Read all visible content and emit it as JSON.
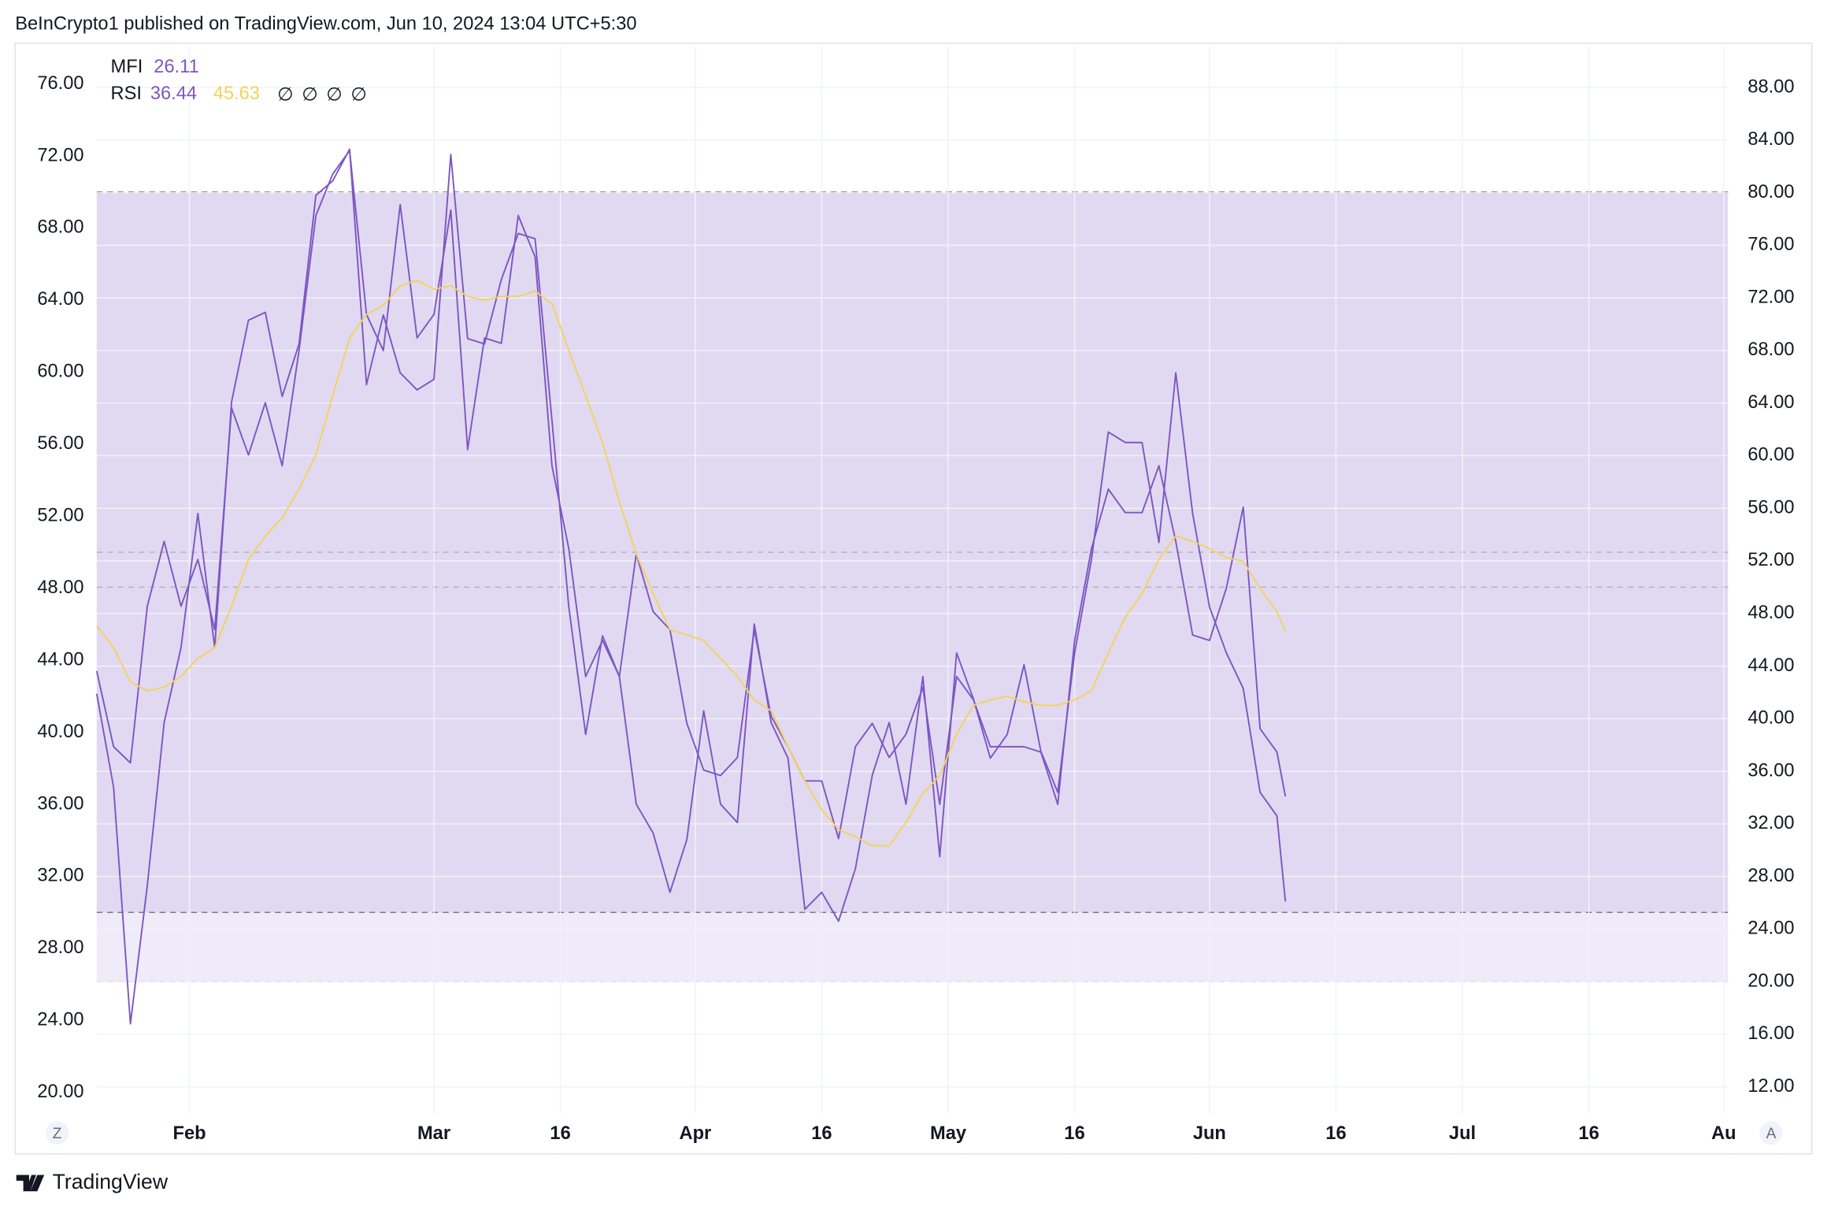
{
  "header": "BeInCrypto1 published on TradingView.com, Jun 10, 2024 13:04 UTC+5:30",
  "footer": "TradingView",
  "buttons": [
    "Z",
    "A"
  ],
  "chart_data": {
    "type": "line",
    "legend_symbols": [
      "∅",
      "∅",
      "∅",
      "∅"
    ],
    "x": [
      21,
      23,
      25,
      27,
      29,
      31,
      33,
      35,
      37,
      39,
      41,
      43,
      45,
      47,
      49,
      51,
      53,
      55,
      57,
      59,
      61,
      63,
      65,
      67,
      69,
      71,
      73,
      75,
      77,
      79,
      81,
      83,
      85,
      87,
      89,
      91,
      93,
      95,
      97,
      99,
      101,
      103,
      105,
      107,
      109,
      111,
      113,
      115,
      117,
      119,
      121,
      123,
      125,
      127,
      129,
      131,
      133,
      135,
      137,
      139,
      141,
      143,
      145,
      147,
      149,
      151,
      153,
      155,
      157,
      159,
      161,
      162
    ],
    "xlim": [
      21,
      214.5
    ],
    "xticks": [
      {
        "value": 32,
        "label": "Feb"
      },
      {
        "value": 61,
        "label": "Mar"
      },
      {
        "value": 76,
        "label": "16"
      },
      {
        "value": 92,
        "label": "Apr"
      },
      {
        "value": 107,
        "label": "16"
      },
      {
        "value": 122,
        "label": "May"
      },
      {
        "value": 137,
        "label": "16"
      },
      {
        "value": 153,
        "label": "Jun"
      },
      {
        "value": 168,
        "label": "16"
      },
      {
        "value": 183,
        "label": "Jul"
      },
      {
        "value": 198,
        "label": "16"
      },
      {
        "value": 214,
        "label": "Au"
      }
    ],
    "ylim": [
      18.85,
      78.07
    ],
    "yticks": [
      {
        "value": 20,
        "label": "20.00"
      },
      {
        "value": 24,
        "label": "24.00"
      },
      {
        "value": 28,
        "label": "28.00"
      },
      {
        "value": 32,
        "label": "32.00"
      },
      {
        "value": 36,
        "label": "36.00"
      },
      {
        "value": 40,
        "label": "40.00"
      },
      {
        "value": 44,
        "label": "44.00"
      },
      {
        "value": 48,
        "label": "48.00"
      },
      {
        "value": 52,
        "label": "52.00"
      },
      {
        "value": 56,
        "label": "56.00"
      },
      {
        "value": 60,
        "label": "60.00"
      },
      {
        "value": 64,
        "label": "64.00"
      },
      {
        "value": 68,
        "label": "68.00"
      },
      {
        "value": 72,
        "label": "72.00"
      },
      {
        "value": 76,
        "label": "76.00"
      }
    ],
    "y2lim": [
      10.0,
      91.1
    ],
    "y2ticks": [
      {
        "value": 12,
        "label": "12.00"
      },
      {
        "value": 16,
        "label": "16.00"
      },
      {
        "value": 20,
        "label": "20.00"
      },
      {
        "value": 24,
        "label": "24.00"
      },
      {
        "value": 28,
        "label": "28.00"
      },
      {
        "value": 32,
        "label": "32.00"
      },
      {
        "value": 36,
        "label": "36.00"
      },
      {
        "value": 40,
        "label": "40.00"
      },
      {
        "value": 44,
        "label": "44.00"
      },
      {
        "value": 48,
        "label": "48.00"
      },
      {
        "value": 52,
        "label": "52.00"
      },
      {
        "value": 56,
        "label": "56.00"
      },
      {
        "value": 60,
        "label": "60.00"
      },
      {
        "value": 64,
        "label": "64.00"
      },
      {
        "value": 68,
        "label": "68.00"
      },
      {
        "value": 72,
        "label": "72.00"
      },
      {
        "value": 76,
        "label": "76.00"
      },
      {
        "value": 80,
        "label": "80.00"
      },
      {
        "value": 84,
        "label": "84.00"
      },
      {
        "value": 88,
        "label": "88.00"
      }
    ],
    "grid": true,
    "bands": [
      {
        "axis": "y",
        "lower": 30,
        "middle": 50,
        "upper": 70,
        "color": "#7e57c2"
      },
      {
        "axis": "y2",
        "lower": 20,
        "middle": 50,
        "upper": 80,
        "color": "#7e57c2"
      }
    ],
    "series": [
      {
        "name": "MFI",
        "axis": "y2",
        "color": "#7e57c2",
        "values": [
          41.9,
          34.8,
          16.8,
          27.3,
          39.7,
          45.4,
          55.6,
          45.4,
          64.1,
          70.3,
          70.9,
          64.5,
          68.5,
          79.8,
          80.9,
          83.3,
          65.4,
          70.7,
          66.3,
          65.0,
          65.8,
          82.9,
          68.9,
          68.5,
          73.4,
          76.9,
          76.5,
          62.7,
          48.5,
          38.8,
          46.3,
          43.2,
          33.5,
          31.3,
          26.8,
          30.8,
          40.6,
          33.5,
          32.1,
          47.2,
          39.7,
          37.0,
          25.5,
          26.8,
          24.6,
          28.6,
          35.7,
          39.7,
          33.5,
          43.2,
          29.5,
          45.0,
          41.5,
          37.0,
          38.8,
          44.1,
          37.5,
          34.4,
          45.0,
          52.1,
          61.8,
          61.0,
          61.0,
          53.4,
          66.3,
          55.6,
          48.5,
          45.0,
          42.3,
          34.4,
          32.6,
          26.11
        ]
      },
      {
        "name": "RSI",
        "axis": "y",
        "color": "#7e57c2",
        "values": [
          43.4,
          39.2,
          38.3,
          47.0,
          50.6,
          47.0,
          49.6,
          45.7,
          58.0,
          55.4,
          58.3,
          54.8,
          61.2,
          68.7,
          71.0,
          72.3,
          63.2,
          61.2,
          69.3,
          61.9,
          63.2,
          69.0,
          55.7,
          61.9,
          61.6,
          68.7,
          66.4,
          54.8,
          50.2,
          43.1,
          45.1,
          43.1,
          49.9,
          46.7,
          45.7,
          40.5,
          37.9,
          37.6,
          38.6,
          45.7,
          40.9,
          39.2,
          37.3,
          37.3,
          34.1,
          39.2,
          40.5,
          38.6,
          39.9,
          42.5,
          36.0,
          43.1,
          41.8,
          39.2,
          39.2,
          39.2,
          38.9,
          36.0,
          45.1,
          50.2,
          53.5,
          52.2,
          52.2,
          54.8,
          50.6,
          45.4,
          45.1,
          48.0,
          52.5,
          40.2,
          38.9,
          36.44
        ]
      },
      {
        "axis": "y",
        "color": "#f2d35b",
        "values": [
          45.9,
          44.7,
          42.8,
          42.3,
          42.5,
          43.1,
          44.1,
          44.7,
          47.0,
          49.6,
          50.9,
          51.9,
          53.5,
          55.4,
          58.7,
          61.9,
          63.2,
          63.7,
          64.8,
          65.1,
          64.6,
          64.8,
          64.2,
          64.0,
          64.2,
          64.2,
          64.5,
          63.8,
          61.2,
          58.7,
          56.1,
          52.8,
          49.9,
          47.7,
          45.7,
          45.4,
          45.1,
          44.1,
          43.1,
          41.8,
          41.2,
          39.2,
          37.3,
          35.7,
          34.6,
          34.2,
          33.7,
          33.7,
          35.0,
          36.6,
          37.6,
          39.9,
          41.5,
          41.8,
          42.0,
          41.7,
          41.5,
          41.5,
          41.8,
          42.3,
          44.4,
          46.4,
          47.7,
          49.6,
          50.9,
          50.6,
          50.2,
          49.7,
          49.5,
          48.0,
          46.7,
          45.63
        ]
      }
    ]
  }
}
